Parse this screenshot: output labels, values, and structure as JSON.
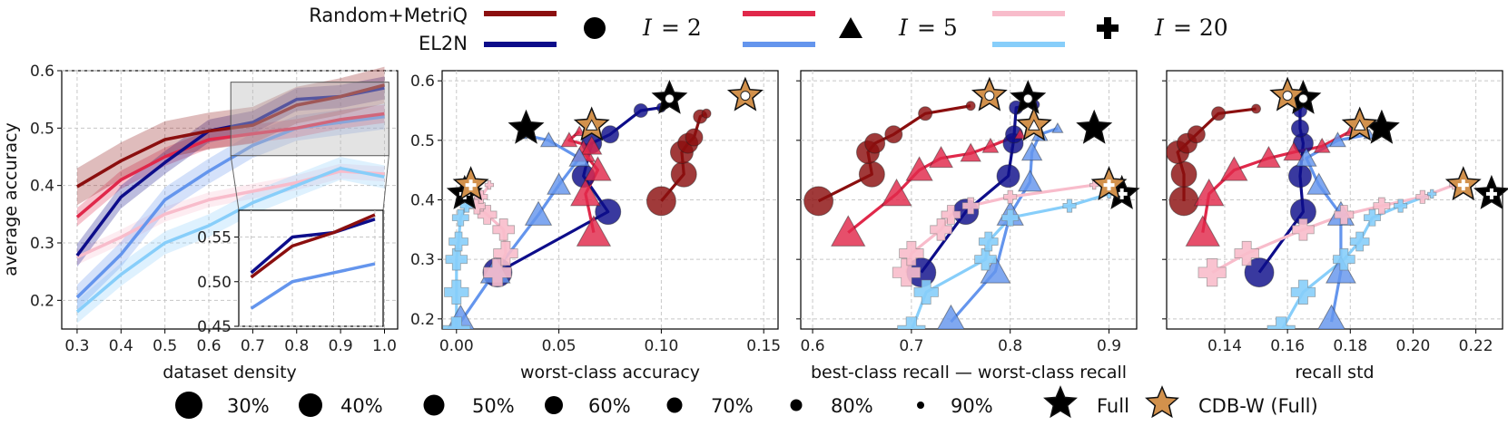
{
  "legend_top": {
    "methods": [
      {
        "name": "Random+MetriQ",
        "color": "#8b0f0f"
      },
      {
        "name": "EL2N",
        "color": "#0d0d8a"
      }
    ],
    "iterations": [
      {
        "label": "I = 2",
        "math_var": "I",
        "math_val": "= 2",
        "marker": "circle",
        "colors": [
          "#8b0f0f",
          "#0d0d8a"
        ]
      },
      {
        "label": "I = 5",
        "math_var": "I",
        "math_val": "= 5",
        "marker": "triangle",
        "colors": [
          "#e0284a",
          "#6495ed"
        ]
      },
      {
        "label": "I = 20",
        "math_var": "I",
        "math_val": "= 20",
        "marker": "plus",
        "colors": [
          "#f8bccb",
          "#87cefa"
        ]
      }
    ]
  },
  "legend_bottom": {
    "sizes": [
      {
        "label": "30%",
        "density": 0.3
      },
      {
        "label": "40%",
        "density": 0.4
      },
      {
        "label": "50%",
        "density": 0.5
      },
      {
        "label": "60%",
        "density": 0.6
      },
      {
        "label": "70%",
        "density": 0.7
      },
      {
        "label": "80%",
        "density": 0.8
      },
      {
        "label": "90%",
        "density": 0.9
      }
    ],
    "full_label": "Full",
    "cdbw_label": "CDB-W (Full)",
    "full_color": "#000000",
    "cdbw_color": "#d2914c"
  },
  "chart_data": [
    {
      "id": "density",
      "type": "line",
      "xlabel": "dataset density",
      "ylabel": "average accuracy",
      "xlim": [
        0.265,
        1.03
      ],
      "ylim": [
        0.15,
        0.6
      ],
      "xticks": [
        "0.3",
        "0.4",
        "0.5",
        "0.6",
        "0.7",
        "0.8",
        "0.9",
        "1.0"
      ],
      "yticks": [
        "0.2",
        "0.3",
        "0.4",
        "0.5",
        "0.6"
      ],
      "grid": true,
      "x": [
        0.3,
        0.4,
        0.5,
        0.6,
        0.7,
        0.8,
        0.9,
        1.0
      ],
      "series": [
        {
          "name": "Random+MetriQ I=20",
          "color": "#f8bccb",
          "values": [
            0.275,
            0.31,
            0.35,
            0.375,
            0.39,
            0.405,
            0.425,
            0.42
          ],
          "band": 0.013
        },
        {
          "name": "EL2N I=20",
          "color": "#87cefa",
          "values": [
            0.18,
            0.245,
            0.3,
            0.33,
            0.37,
            0.4,
            0.43,
            0.415
          ],
          "band": 0.02
        },
        {
          "name": "EL2N I=5",
          "color": "#6495ed",
          "values": [
            0.205,
            0.28,
            0.375,
            0.425,
            0.47,
            0.5,
            0.51,
            0.52
          ],
          "band": 0.022
        },
        {
          "name": "Random+MetriQ I=5",
          "color": "#e0284a",
          "values": [
            0.345,
            0.41,
            0.45,
            0.48,
            0.49,
            0.5,
            0.515,
            0.525
          ],
          "band": 0.016
        },
        {
          "name": "EL2N I=2",
          "color": "#0d0d8a",
          "values": [
            0.278,
            0.38,
            0.44,
            0.495,
            0.51,
            0.55,
            0.555,
            0.57
          ],
          "band": 0.02
        },
        {
          "name": "Random+MetriQ I=2",
          "color": "#8b0f0f",
          "values": [
            0.398,
            0.443,
            0.48,
            0.495,
            0.505,
            0.54,
            0.555,
            0.575
          ],
          "band": 0.032
        }
      ],
      "inset": {
        "xlim": [
          0.67,
          1.02
        ],
        "ylim": [
          0.45,
          0.58
        ],
        "yticks": [
          "0.45",
          "0.50",
          "0.55"
        ],
        "zoom_xrange": [
          0.65,
          1.01
        ],
        "zoom_yrange": [
          0.452,
          0.58
        ]
      }
    },
    {
      "id": "worst",
      "type": "scatter",
      "xlabel": "worst-class accuracy",
      "xlim": [
        -0.007,
        0.157
      ],
      "ylim": [
        0.183,
        0.617
      ],
      "xticks": [
        "0.00",
        "0.05",
        "0.10",
        "0.15"
      ],
      "yticks": [
        "0.2",
        "0.3",
        "0.4",
        "0.5",
        "0.6"
      ],
      "grid": true,
      "series": [
        {
          "name": "Random+MetriQ I=2",
          "marker": "circle",
          "color": "#8b0f0f",
          "points": [
            [
              0.1,
              0.398
            ],
            [
              0.111,
              0.443
            ],
            [
              0.11,
              0.48
            ],
            [
              0.113,
              0.495
            ],
            [
              0.116,
              0.505
            ],
            [
              0.119,
              0.54
            ],
            [
              0.122,
              0.545
            ]
          ]
        },
        {
          "name": "EL2N I=2",
          "marker": "circle",
          "color": "#0d0d8a",
          "points": [
            [
              0.02,
              0.278
            ],
            [
              0.074,
              0.38
            ],
            [
              0.062,
              0.44
            ],
            [
              0.066,
              0.495
            ],
            [
              0.075,
              0.51
            ],
            [
              0.09,
              0.55
            ],
            [
              0.1,
              0.555
            ]
          ]
        },
        {
          "name": "Random+MetriQ I=5",
          "marker": "triangle",
          "color": "#e0284a",
          "points": [
            [
              0.067,
              0.345
            ],
            [
              0.063,
              0.41
            ],
            [
              0.069,
              0.45
            ],
            [
              0.062,
              0.48
            ],
            [
              0.066,
              0.49
            ],
            [
              0.055,
              0.5
            ],
            [
              0.06,
              0.515
            ]
          ]
        },
        {
          "name": "EL2N I=5",
          "marker": "triangle",
          "color": "#6495ed",
          "points": [
            [
              0.002,
              0.195
            ],
            [
              0.019,
              0.28
            ],
            [
              0.04,
              0.375
            ],
            [
              0.05,
              0.425
            ],
            [
              0.06,
              0.47
            ],
            [
              0.045,
              0.5
            ],
            [
              0.032,
              0.51
            ]
          ]
        },
        {
          "name": "Random+MetriQ I=20",
          "marker": "plus",
          "color": "#f8bccb",
          "points": [
            [
              0.02,
              0.278
            ],
            [
              0.024,
              0.31
            ],
            [
              0.023,
              0.35
            ],
            [
              0.015,
              0.375
            ],
            [
              0.01,
              0.39
            ],
            [
              0.012,
              0.405
            ],
            [
              0.016,
              0.425
            ]
          ]
        },
        {
          "name": "EL2N I=20",
          "marker": "plus",
          "color": "#87cefa",
          "points": [
            [
              0.0,
              0.18
            ],
            [
              0.0,
              0.245
            ],
            [
              0.0,
              0.3
            ],
            [
              0.001,
              0.33
            ],
            [
              0.002,
              0.37
            ],
            [
              0.005,
              0.39
            ],
            [
              0.007,
              0.41
            ]
          ]
        }
      ],
      "stars": [
        {
          "kind": "full",
          "x": 0.034,
          "y": 0.52,
          "inner": "none"
        },
        {
          "kind": "full",
          "x": 0.104,
          "y": 0.57,
          "inner": "circle"
        },
        {
          "kind": "full",
          "x": 0.004,
          "y": 0.41,
          "inner": "plus"
        },
        {
          "kind": "cdbw",
          "x": 0.066,
          "y": 0.525,
          "inner": "triangle"
        },
        {
          "kind": "cdbw",
          "x": 0.141,
          "y": 0.575,
          "inner": "circle"
        },
        {
          "kind": "cdbw",
          "x": 0.007,
          "y": 0.425,
          "inner": "plus"
        }
      ]
    },
    {
      "id": "gap",
      "type": "scatter",
      "xlabel": "best-class recall — worst-class recall",
      "xlim": [
        0.588,
        0.928
      ],
      "ylim": [
        0.183,
        0.617
      ],
      "xticks": [
        "0.6",
        "0.7",
        "0.8",
        "0.9"
      ],
      "yticks": [],
      "grid": true,
      "series": [
        {
          "name": "Random+MetriQ I=2",
          "marker": "circle",
          "color": "#8b0f0f",
          "points": [
            [
              0.606,
              0.398
            ],
            [
              0.66,
              0.443
            ],
            [
              0.656,
              0.48
            ],
            [
              0.663,
              0.495
            ],
            [
              0.682,
              0.51
            ],
            [
              0.714,
              0.545
            ],
            [
              0.76,
              0.558
            ]
          ]
        },
        {
          "name": "EL2N I=2",
          "marker": "circle",
          "color": "#0d0d8a",
          "points": [
            [
              0.71,
              0.278
            ],
            [
              0.755,
              0.38
            ],
            [
              0.798,
              0.44
            ],
            [
              0.803,
              0.495
            ],
            [
              0.804,
              0.51
            ],
            [
              0.806,
              0.555
            ],
            [
              0.825,
              0.56
            ]
          ]
        },
        {
          "name": "Random+MetriQ I=5",
          "marker": "triangle",
          "color": "#e0284a",
          "points": [
            [
              0.636,
              0.345
            ],
            [
              0.685,
              0.41
            ],
            [
              0.708,
              0.45
            ],
            [
              0.73,
              0.47
            ],
            [
              0.76,
              0.478
            ],
            [
              0.78,
              0.49
            ],
            [
              0.81,
              0.51
            ]
          ]
        },
        {
          "name": "EL2N I=5",
          "marker": "triangle",
          "color": "#6495ed",
          "points": [
            [
              0.74,
              0.195
            ],
            [
              0.785,
              0.28
            ],
            [
              0.8,
              0.375
            ],
            [
              0.82,
              0.43
            ],
            [
              0.822,
              0.48
            ],
            [
              0.83,
              0.51
            ],
            [
              0.848,
              0.52
            ]
          ]
        },
        {
          "name": "Random+MetriQ I=20",
          "marker": "plus",
          "color": "#f8bccb",
          "points": [
            [
              0.695,
              0.278
            ],
            [
              0.7,
              0.31
            ],
            [
              0.73,
              0.35
            ],
            [
              0.74,
              0.375
            ],
            [
              0.76,
              0.39
            ],
            [
              0.8,
              0.405
            ],
            [
              0.885,
              0.425
            ]
          ]
        },
        {
          "name": "EL2N I=20",
          "marker": "plus",
          "color": "#87cefa",
          "points": [
            [
              0.7,
              0.18
            ],
            [
              0.715,
              0.245
            ],
            [
              0.775,
              0.3
            ],
            [
              0.778,
              0.33
            ],
            [
              0.8,
              0.37
            ],
            [
              0.86,
              0.39
            ],
            [
              0.9,
              0.41
            ]
          ]
        }
      ],
      "stars": [
        {
          "kind": "full",
          "x": 0.818,
          "y": 0.57,
          "inner": "circle"
        },
        {
          "kind": "full",
          "x": 0.885,
          "y": 0.52,
          "inner": "none"
        },
        {
          "kind": "full",
          "x": 0.913,
          "y": 0.41,
          "inner": "plus"
        },
        {
          "kind": "cdbw",
          "x": 0.779,
          "y": 0.575,
          "inner": "circle"
        },
        {
          "kind": "cdbw",
          "x": 0.824,
          "y": 0.525,
          "inner": "triangle"
        },
        {
          "kind": "cdbw",
          "x": 0.9,
          "y": 0.425,
          "inner": "plus"
        }
      ]
    },
    {
      "id": "std",
      "type": "scatter",
      "xlabel": "recall std",
      "xlim": [
        0.1215,
        0.2285
      ],
      "ylim": [
        0.183,
        0.617
      ],
      "xticks": [
        "0.14",
        "0.16",
        "0.18",
        "0.20",
        "0.22"
      ],
      "yticks": [],
      "grid": true,
      "series": [
        {
          "name": "Random+MetriQ I=2",
          "marker": "circle",
          "color": "#8b0f0f",
          "points": [
            [
              0.127,
              0.398
            ],
            [
              0.127,
              0.443
            ],
            [
              0.125,
              0.48
            ],
            [
              0.128,
              0.495
            ],
            [
              0.131,
              0.51
            ],
            [
              0.138,
              0.545
            ],
            [
              0.15,
              0.553
            ]
          ]
        },
        {
          "name": "EL2N I=2",
          "marker": "circle",
          "color": "#0d0d8a",
          "points": [
            [
              0.151,
              0.278
            ],
            [
              0.165,
              0.38
            ],
            [
              0.164,
              0.44
            ],
            [
              0.165,
              0.495
            ],
            [
              0.164,
              0.52
            ],
            [
              0.164,
              0.55
            ],
            [
              0.165,
              0.565
            ]
          ]
        },
        {
          "name": "Random+MetriQ I=5",
          "marker": "triangle",
          "color": "#e0284a",
          "points": [
            [
              0.133,
              0.345
            ],
            [
              0.135,
              0.41
            ],
            [
              0.143,
              0.45
            ],
            [
              0.154,
              0.47
            ],
            [
              0.162,
              0.48
            ],
            [
              0.171,
              0.49
            ],
            [
              0.18,
              0.515
            ]
          ]
        },
        {
          "name": "EL2N I=5",
          "marker": "triangle",
          "color": "#6495ed",
          "points": [
            [
              0.174,
              0.195
            ],
            [
              0.177,
              0.28
            ],
            [
              0.177,
              0.375
            ],
            [
              0.17,
              0.425
            ],
            [
              0.166,
              0.47
            ],
            [
              0.176,
              0.5
            ],
            [
              0.186,
              0.51
            ]
          ]
        },
        {
          "name": "Random+MetriQ I=20",
          "marker": "plus",
          "color": "#f8bccb",
          "points": [
            [
              0.136,
              0.278
            ],
            [
              0.147,
              0.31
            ],
            [
              0.165,
              0.35
            ],
            [
              0.178,
              0.375
            ],
            [
              0.19,
              0.39
            ],
            [
              0.203,
              0.405
            ],
            [
              0.213,
              0.425
            ]
          ]
        },
        {
          "name": "EL2N I=20",
          "marker": "plus",
          "color": "#87cefa",
          "points": [
            [
              0.158,
              0.18
            ],
            [
              0.165,
              0.245
            ],
            [
              0.178,
              0.3
            ],
            [
              0.183,
              0.33
            ],
            [
              0.187,
              0.37
            ],
            [
              0.196,
              0.39
            ],
            [
              0.206,
              0.41
            ]
          ]
        }
      ],
      "stars": [
        {
          "kind": "full",
          "x": 0.165,
          "y": 0.57,
          "inner": "circle"
        },
        {
          "kind": "full",
          "x": 0.19,
          "y": 0.52,
          "inner": "none"
        },
        {
          "kind": "full",
          "x": 0.225,
          "y": 0.41,
          "inner": "plus"
        },
        {
          "kind": "cdbw",
          "x": 0.16,
          "y": 0.575,
          "inner": "circle"
        },
        {
          "kind": "cdbw",
          "x": 0.183,
          "y": 0.525,
          "inner": "triangle"
        },
        {
          "kind": "cdbw",
          "x": 0.216,
          "y": 0.425,
          "inner": "plus"
        }
      ]
    }
  ]
}
